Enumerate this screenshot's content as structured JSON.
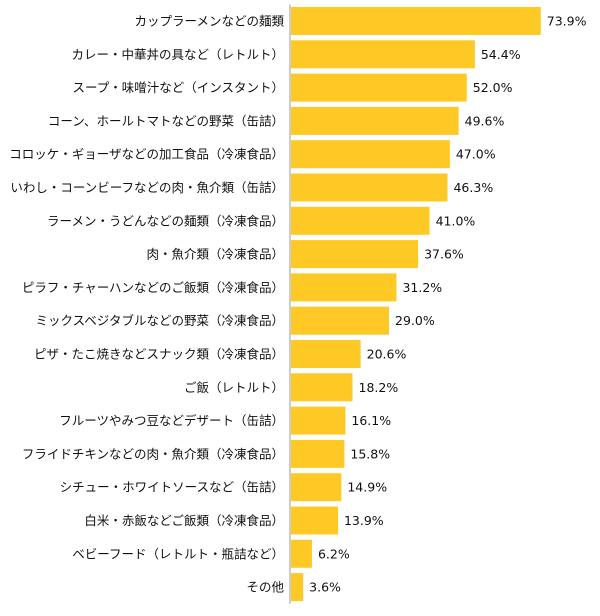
{
  "chart_data": {
    "type": "bar",
    "orientation": "horizontal",
    "title": "",
    "xlabel": "",
    "ylabel": "",
    "xlim": [
      0,
      100
    ],
    "grid": false,
    "legend": "none",
    "bar_color": "#FFC925",
    "axis_color": "#9A9A9A",
    "value_suffix": "%",
    "categories": [
      "カップラーメンなどの麺類",
      "カレー・中華丼の具など（レトルト）",
      "スープ・味噌汁など（インスタント）",
      "コーン、ホールトマトなどの野菜（缶詰）",
      "コロッケ・ギョーザなどの加工食品（冷凍食品）",
      "いわし・コーンビーフなどの肉・魚介類（缶詰）",
      "ラーメン・うどんなどの麺類（冷凍食品）",
      "肉・魚介類（冷凍食品）",
      "ピラフ・チャーハンなどのご飯類（冷凍食品）",
      "ミックスベジタブルなどの野菜（冷凍食品）",
      "ピザ・たこ焼きなどスナック類（冷凍食品）",
      "ご飯（レトルト）",
      "フルーツやみつ豆などデザート（缶詰）",
      "フライドチキンなどの肉・魚介類（冷凍食品）",
      "シチュー・ホワイトソースなど（缶詰）",
      "白米・赤飯などご飯類（冷凍食品）",
      "ベビーフード（レトルト・瓶詰など）",
      "その他"
    ],
    "values": [
      73.9,
      54.4,
      52.0,
      49.6,
      47.0,
      46.3,
      41.0,
      37.6,
      31.2,
      29.0,
      20.6,
      18.2,
      16.1,
      15.8,
      14.9,
      13.9,
      6.2,
      3.6
    ],
    "value_labels": [
      "73.9%",
      "54.4%",
      "52.0%",
      "49.6%",
      "47.0%",
      "46.3%",
      "41.0%",
      "37.6%",
      "31.2%",
      "29.0%",
      "20.6%",
      "18.2%",
      "16.1%",
      "15.8%",
      "14.9%",
      "13.9%",
      "6.2%",
      "3.6%"
    ]
  }
}
